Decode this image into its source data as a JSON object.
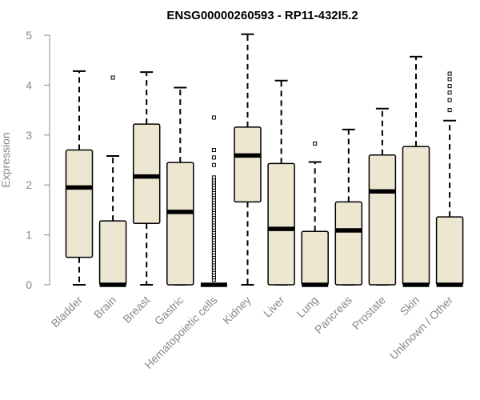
{
  "chart_data": {
    "type": "boxplot",
    "title": "ENSG00000260593 - RP11-432I5.2",
    "ylabel": "Expression",
    "xlabel": "",
    "ylim": [
      0,
      5
    ],
    "yticks": [
      0,
      1,
      2,
      3,
      4,
      5
    ],
    "grid": false,
    "colors": {
      "box_fill": "#ede7d1",
      "box_stroke": "#000000",
      "axis": "#888888"
    },
    "categories": [
      "Bladder",
      "Brain",
      "Breast",
      "Gastric",
      "Hematopoietic cells",
      "Kidney",
      "Liver",
      "Lung",
      "Pancreas",
      "Prostate",
      "Skin",
      "Unknown / Other"
    ],
    "boxes": [
      {
        "category": "Bladder",
        "whisker_low": 0,
        "q1": 0.55,
        "median": 1.95,
        "q3": 2.7,
        "whisker_high": 4.28,
        "outliers": []
      },
      {
        "category": "Brain",
        "whisker_low": 0,
        "q1": 0,
        "median": 0,
        "q3": 1.28,
        "whisker_high": 2.58,
        "outliers": [
          4.15
        ]
      },
      {
        "category": "Breast",
        "whisker_low": 0,
        "q1": 1.23,
        "median": 2.17,
        "q3": 3.22,
        "whisker_high": 4.26,
        "outliers": []
      },
      {
        "category": "Gastric",
        "whisker_low": 0,
        "q1": 0,
        "median": 1.46,
        "q3": 2.45,
        "whisker_high": 3.95,
        "outliers": []
      },
      {
        "category": "Hematopoietic cells",
        "whisker_low": 0,
        "q1": 0,
        "median": 0,
        "q3": 0,
        "whisker_high": 0,
        "outliers": [
          0.1,
          0.15,
          0.2,
          0.25,
          0.3,
          0.35,
          0.4,
          0.45,
          0.5,
          0.55,
          0.6,
          0.65,
          0.7,
          0.75,
          0.8,
          0.85,
          0.9,
          0.95,
          1.0,
          1.05,
          1.1,
          1.15,
          1.2,
          1.25,
          1.3,
          1.35,
          1.4,
          1.45,
          1.5,
          1.55,
          1.6,
          1.65,
          1.7,
          1.75,
          1.8,
          1.85,
          1.9,
          1.95,
          2.0,
          2.05,
          2.1,
          2.15,
          2.4,
          2.55,
          2.7,
          3.35
        ]
      },
      {
        "category": "Kidney",
        "whisker_low": 0,
        "q1": 1.66,
        "median": 2.59,
        "q3": 3.16,
        "whisker_high": 5.02,
        "outliers": []
      },
      {
        "category": "Liver",
        "whisker_low": 0,
        "q1": 0,
        "median": 1.12,
        "q3": 2.43,
        "whisker_high": 4.09,
        "outliers": []
      },
      {
        "category": "Lung",
        "whisker_low": 0,
        "q1": 0,
        "median": 0,
        "q3": 1.07,
        "whisker_high": 2.46,
        "outliers": [
          2.83
        ]
      },
      {
        "category": "Pancreas",
        "whisker_low": 0,
        "q1": 0,
        "median": 1.09,
        "q3": 1.66,
        "whisker_high": 3.11,
        "outliers": []
      },
      {
        "category": "Prostate",
        "whisker_low": 0,
        "q1": 0,
        "median": 1.87,
        "q3": 2.6,
        "whisker_high": 3.53,
        "outliers": []
      },
      {
        "category": "Skin",
        "whisker_low": 0,
        "q1": 0,
        "median": 0,
        "q3": 2.77,
        "whisker_high": 4.57,
        "outliers": []
      },
      {
        "category": "Unknown / Other",
        "whisker_low": 0,
        "q1": 0,
        "median": 0,
        "q3": 1.36,
        "whisker_high": 3.29,
        "outliers": [
          3.5,
          3.7,
          3.85,
          3.98,
          4.12,
          4.23
        ]
      }
    ]
  }
}
